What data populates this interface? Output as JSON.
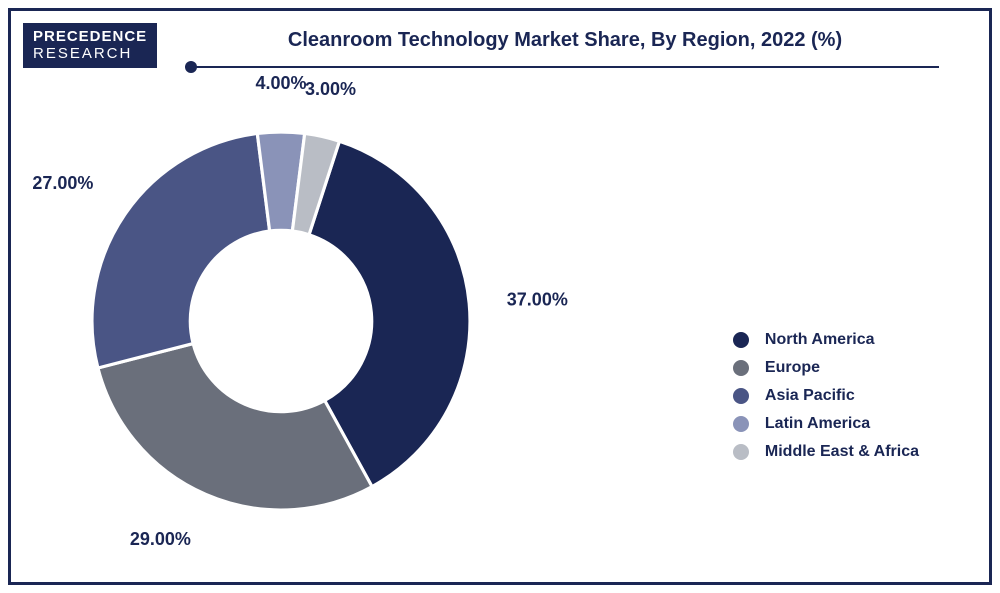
{
  "logo": {
    "line1": "PRECEDENCE",
    "line2": "RESEARCH"
  },
  "title": "Cleanroom Technology Market Share, By Region, 2022 (%)",
  "chart": {
    "type": "donut",
    "background_color": "#ffffff",
    "frame_color": "#1a2654",
    "inner_radius_pct": 48,
    "outer_radius_pct": 100,
    "start_angle_deg": -72,
    "label_fontsize": 18,
    "label_color": "#1a2654",
    "slices": [
      {
        "name": "North America",
        "value": 37.0,
        "label": "37.00%",
        "color": "#1a2654"
      },
      {
        "name": "Europe",
        "value": 29.0,
        "label": "29.00%",
        "color": "#6a6f7b"
      },
      {
        "name": "Asia Pacific",
        "value": 27.0,
        "label": "27.00%",
        "color": "#4a5585"
      },
      {
        "name": "Latin America",
        "value": 4.0,
        "label": "4.00%",
        "color": "#8a93b8"
      },
      {
        "name": "Middle East & Africa",
        "value": 3.0,
        "label": "3.00%",
        "color": "#b9bdc5"
      }
    ]
  },
  "legend": {
    "items": [
      {
        "label": "North America",
        "color": "#1a2654"
      },
      {
        "label": "Europe",
        "color": "#6a6f7b"
      },
      {
        "label": "Asia Pacific",
        "color": "#4a5585"
      },
      {
        "label": "Latin America",
        "color": "#8a93b8"
      },
      {
        "label": "Middle East & Africa",
        "color": "#b9bdc5"
      }
    ],
    "label_fontsize": 16,
    "label_color": "#1a2654"
  }
}
